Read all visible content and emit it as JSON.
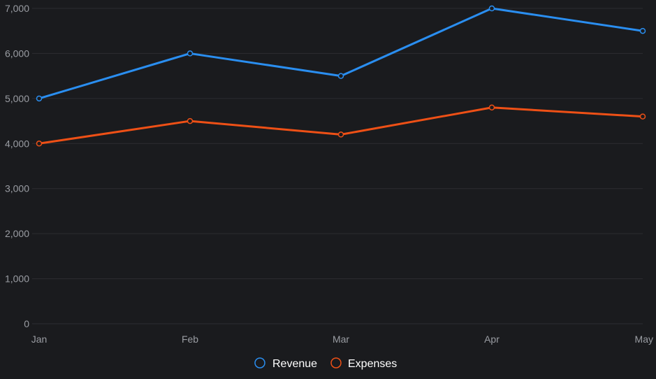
{
  "chart_data": {
    "type": "line",
    "categories": [
      "Jan",
      "Feb",
      "Mar",
      "Apr",
      "May"
    ],
    "series": [
      {
        "name": "Revenue",
        "values": [
          5000,
          6000,
          5500,
          7000,
          6500
        ],
        "color": "#2a8ef0"
      },
      {
        "name": "Expenses",
        "values": [
          4000,
          4500,
          4200,
          4800,
          4600
        ],
        "color": "#ee5016"
      }
    ],
    "y_ticks": [
      "0",
      "1,000",
      "2,000",
      "3,000",
      "4,000",
      "5,000",
      "6,000",
      "7,000"
    ],
    "ylim": [
      0,
      7000
    ],
    "grid": true,
    "legend_position": "bottom",
    "colors": {
      "background": "#1a1b1e",
      "grid": "#2c2d31",
      "tick_text": "#9a9da3",
      "legend_text": "#ffffff"
    }
  }
}
